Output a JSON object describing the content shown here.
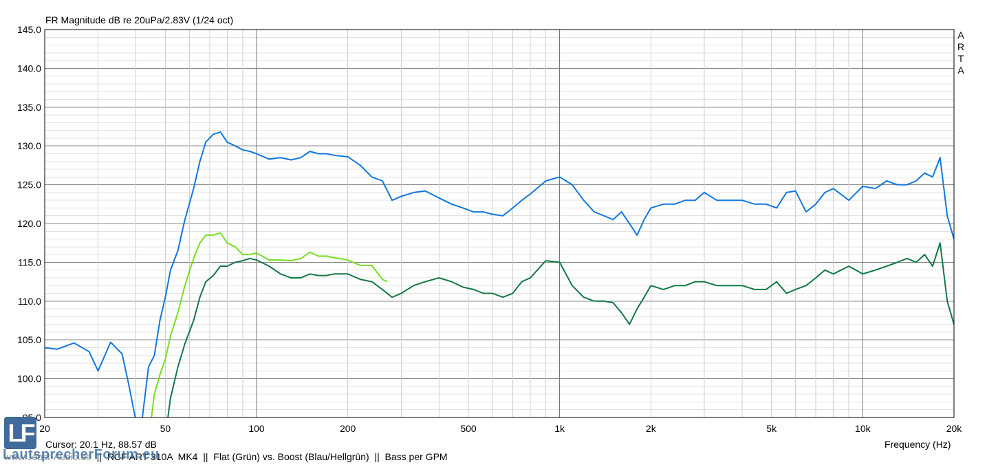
{
  "title": "FR Magnitude dB re 20uPa/2.83V (1/24 oct)",
  "watermark_letters": [
    "A",
    "R",
    "T",
    "A"
  ],
  "cursor_text": "Cursor: 20.1 Hz, 88.57 dB",
  "footer": {
    "site": "www.Jobst-Audio.de",
    "separator": "  ||  ",
    "product": "RCF ART 310A  MK4",
    "description": "Flat (Grün) vs. Boost (Blau/Hellgrün)",
    "note": "Bass per GPM"
  },
  "logo": {
    "mark": "LF",
    "text": "LautsprecherForum.eu"
  },
  "colors": {
    "blue": "#1177dd",
    "light_green": "#77dd22",
    "dark_green": "#117744",
    "grid": "#bbbbbb",
    "grid_major": "#888888"
  },
  "chart_data": {
    "type": "line",
    "title": "FR Magnitude dB re 20uPa/2.83V (1/24 oct)",
    "xlabel": "Frequency (Hz)",
    "ylabel": "",
    "xscale": "log",
    "xlim": [
      20,
      20000
    ],
    "ylim": [
      95,
      145
    ],
    "grid": true,
    "x_ticks": [
      20,
      50,
      100,
      200,
      500,
      1000,
      2000,
      5000,
      10000,
      20000
    ],
    "x_tick_labels": [
      "20",
      "50",
      "100",
      "200",
      "500",
      "1k",
      "2k",
      "5k",
      "10k",
      "20k"
    ],
    "y_ticks": [
      95,
      100,
      105,
      110,
      115,
      120,
      125,
      130,
      135,
      140,
      145
    ],
    "y_tick_labels": [
      "95.0",
      "100.0",
      "105.0",
      "110.0",
      "115.0",
      "120.0",
      "125.0",
      "130.0",
      "135.0",
      "140.0",
      "145.0"
    ],
    "series": [
      {
        "color": "#1177dd",
        "x": [
          20,
          22,
          25,
          28,
          30,
          33,
          36,
          38,
          40,
          42,
          44,
          46,
          48,
          50,
          52,
          55,
          58,
          62,
          65,
          68,
          72,
          76,
          80,
          85,
          90,
          95,
          100,
          110,
          120,
          130,
          140,
          150,
          160,
          170,
          180,
          200,
          220,
          240,
          260,
          280,
          300,
          330,
          360,
          400,
          440,
          480,
          520,
          560,
          600,
          650,
          700,
          750,
          800,
          900,
          1000,
          1100,
          1200,
          1300,
          1400,
          1500,
          1600,
          1700,
          1800,
          1900,
          2000,
          2200,
          2400,
          2600,
          2800,
          3000,
          3300,
          3600,
          4000,
          4400,
          4800,
          5200,
          5600,
          6000,
          6500,
          7000,
          7500,
          8000,
          9000,
          10000,
          11000,
          12000,
          13000,
          14000,
          15000,
          16000,
          17000,
          18000,
          19000,
          20000
        ],
        "y": [
          104.0,
          103.8,
          104.6,
          103.5,
          101.0,
          104.7,
          103.2,
          99.0,
          94.5,
          95.0,
          101.5,
          103.0,
          107.5,
          110.5,
          114.0,
          116.5,
          120.5,
          124.5,
          128.0,
          130.5,
          131.5,
          131.8,
          130.5,
          130.0,
          129.5,
          129.3,
          129.0,
          128.3,
          128.5,
          128.2,
          128.5,
          129.3,
          129.0,
          129.0,
          128.8,
          128.6,
          127.5,
          126.0,
          125.5,
          123.0,
          123.5,
          124.0,
          124.2,
          123.3,
          122.5,
          122.0,
          121.5,
          121.5,
          121.2,
          121.0,
          122.0,
          123.0,
          123.8,
          125.5,
          126.0,
          125.0,
          123.0,
          121.5,
          121.0,
          120.5,
          121.5,
          120.0,
          118.5,
          120.5,
          122.0,
          122.5,
          122.5,
          123.0,
          123.0,
          124.0,
          123.0,
          123.0,
          123.0,
          122.5,
          122.5,
          122.0,
          124.0,
          124.2,
          121.5,
          122.5,
          124.0,
          124.5,
          123.0,
          124.8,
          124.5,
          125.5,
          125.0,
          125.0,
          125.5,
          126.5,
          126.0,
          128.5,
          121.0,
          118.0
        ]
      },
      {
        "color": "#77dd22",
        "x": [
          45,
          46,
          48,
          50,
          52,
          55,
          58,
          62,
          65,
          68,
          72,
          76,
          80,
          85,
          90,
          95,
          100,
          110,
          120,
          130,
          140,
          150,
          160,
          170,
          180,
          200,
          220,
          240,
          260,
          270
        ],
        "y": [
          95.0,
          98.0,
          100.5,
          102.5,
          105.5,
          108.5,
          112.0,
          115.5,
          117.5,
          118.5,
          118.5,
          118.8,
          117.5,
          117.0,
          116.0,
          116.0,
          116.2,
          115.3,
          115.3,
          115.2,
          115.5,
          116.3,
          115.8,
          115.8,
          115.6,
          115.3,
          114.6,
          114.6,
          112.8,
          112.5
        ]
      },
      {
        "color": "#117744",
        "x": [
          51,
          52,
          55,
          58,
          62,
          65,
          68,
          72,
          76,
          80,
          85,
          90,
          95,
          100,
          110,
          120,
          130,
          140,
          150,
          160,
          170,
          180,
          200,
          220,
          240,
          260,
          280,
          300,
          330,
          360,
          400,
          440,
          480,
          520,
          560,
          600,
          650,
          700,
          750,
          800,
          900,
          1000,
          1100,
          1200,
          1300,
          1400,
          1500,
          1600,
          1700,
          1800,
          1900,
          2000,
          2200,
          2400,
          2600,
          2800,
          3000,
          3300,
          3600,
          4000,
          4400,
          4800,
          5200,
          5600,
          6000,
          6500,
          7000,
          7500,
          8000,
          9000,
          10000,
          11000,
          12000,
          13000,
          14000,
          15000,
          16000,
          17000,
          18000,
          19000,
          20000
        ],
        "y": [
          95.0,
          97.5,
          101.5,
          104.5,
          107.5,
          110.5,
          112.5,
          113.3,
          114.5,
          114.5,
          115.0,
          115.2,
          115.5,
          115.3,
          114.5,
          113.5,
          113.0,
          113.0,
          113.5,
          113.3,
          113.3,
          113.5,
          113.5,
          112.8,
          112.5,
          111.5,
          110.5,
          111.0,
          112.0,
          112.5,
          113.0,
          112.5,
          111.8,
          111.5,
          111.0,
          111.0,
          110.5,
          111.0,
          112.5,
          113.0,
          115.2,
          115.0,
          112.0,
          110.5,
          110.0,
          110.0,
          109.8,
          108.5,
          107.0,
          109.0,
          110.5,
          112.0,
          111.5,
          112.0,
          112.0,
          112.5,
          112.5,
          112.0,
          112.0,
          112.0,
          111.5,
          111.5,
          112.5,
          111.0,
          111.5,
          112.0,
          113.0,
          114.0,
          113.5,
          114.5,
          113.5,
          114.0,
          114.5,
          115.0,
          115.5,
          115.0,
          116.0,
          114.5,
          117.5,
          110.0,
          107.0
        ]
      }
    ]
  }
}
